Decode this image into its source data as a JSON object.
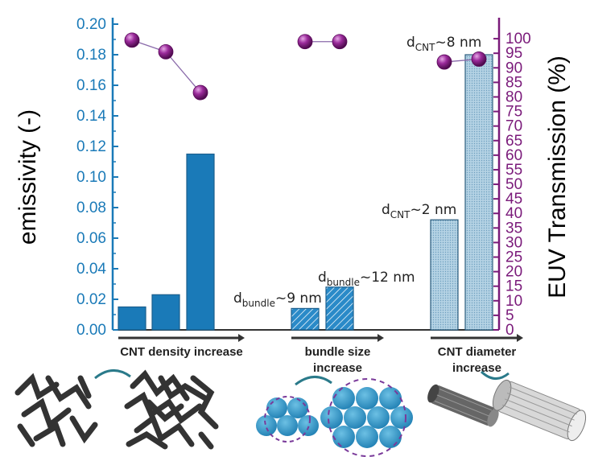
{
  "chart_data": {
    "type": "bar",
    "title": "",
    "left_axis": {
      "label": "emissivity (-)",
      "ylim": [
        0,
        0.2
      ],
      "ticks": [
        "0.00",
        "0.02",
        "0.04",
        "0.06",
        "0.08",
        "0.10",
        "0.12",
        "0.14",
        "0.16",
        "0.18",
        "0.20"
      ],
      "color": "#1a7ab8"
    },
    "right_axis": {
      "label": "EUV Transmission (%)",
      "ylim": [
        0,
        105
      ],
      "ticks": [
        "0",
        "5",
        "10",
        "15",
        "20",
        "25",
        "30",
        "35",
        "40",
        "45",
        "50",
        "55",
        "60",
        "65",
        "70",
        "75",
        "80",
        "85",
        "90",
        "95",
        "100"
      ],
      "color": "#7a1a7a"
    },
    "groups": [
      {
        "name": "CNT density increase",
        "label_lines": [
          "CNT density increase"
        ],
        "style": "solid",
        "emissivity": [
          0.015,
          0.023,
          0.115
        ],
        "transmission": [
          99.5,
          95.5,
          81.5
        ]
      },
      {
        "name": "bundle size increase",
        "label_lines": [
          "bundle size",
          "increase"
        ],
        "style": "hatched",
        "emissivity": [
          0.014,
          0.028
        ],
        "transmission": [
          99,
          99
        ]
      },
      {
        "name": "CNT diameter increase",
        "label_lines": [
          "CNT diameter",
          "increase"
        ],
        "style": "dotted",
        "emissivity": [
          0.072,
          0.18
        ],
        "transmission": [
          92,
          93
        ]
      }
    ],
    "annotations": [
      {
        "main": "d",
        "sub": "bundle",
        "tail": "~9 nm"
      },
      {
        "main": "d",
        "sub": "bundle",
        "tail": "~12 nm"
      },
      {
        "main": "d",
        "sub": "CNT",
        "tail": "~2 nm"
      },
      {
        "main": "d",
        "sub": "CNT",
        "tail": "~8 nm"
      }
    ],
    "colors": {
      "solid_bar": "#1a7ab8",
      "hatched_bar": "#2a8ac8",
      "dotted_bar": "#9ec4da",
      "marker": "#8a1a8a"
    }
  },
  "illustrations": [
    {
      "name": "cnt-network-icons"
    },
    {
      "name": "bundle-circles-icons"
    },
    {
      "name": "nanotube-cylinders-icons"
    }
  ]
}
